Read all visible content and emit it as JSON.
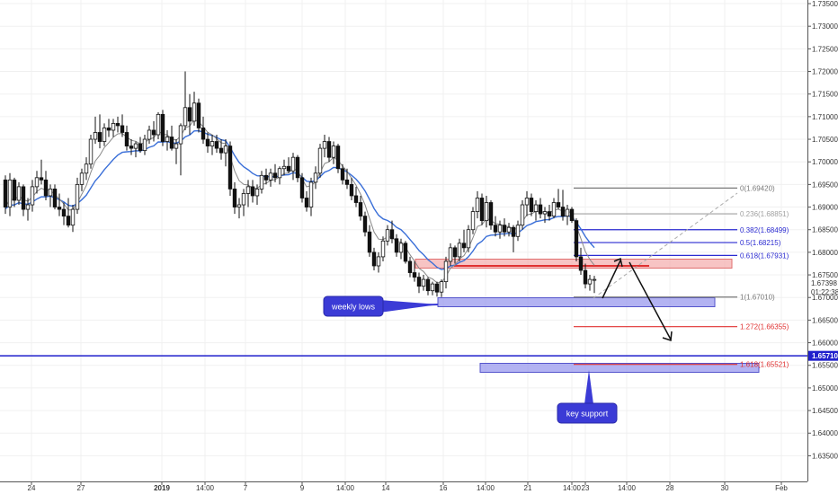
{
  "chart_data": {
    "type": "candlestick",
    "y_range": [
      1.6325,
      1.7356
    ],
    "x_ticks": [
      "24",
      "27",
      "2019",
      "14:00",
      "7",
      "9",
      "14:00",
      "14",
      "16",
      "14:00",
      "21",
      "14:00",
      "23",
      "14:00",
      "28",
      "30",
      "Feb"
    ],
    "y_ticks": [
      "1.73500",
      "1.73000",
      "1.72500",
      "1.72000",
      "1.71500",
      "1.71000",
      "1.70500",
      "1.70000",
      "1.69500",
      "1.69000",
      "1.68500",
      "1.68000",
      "1.67500",
      "1.67000",
      "1.66500",
      "1.66000",
      "1.65500",
      "1.65000",
      "1.64500",
      "1.64000",
      "1.63500"
    ],
    "price_labels": {
      "current": "1.67398",
      "countdown": "01:22:38",
      "level": "1.65710",
      "level_value": 1.6571
    },
    "fib_levels": [
      {
        "label": "0(1.69420)",
        "value": 1.6942,
        "color": "#787878"
      },
      {
        "label": "0.236(1.68851)",
        "value": 1.68851,
        "color": "#a0a0a0"
      },
      {
        "label": "0.382(1.68499)",
        "value": 1.68499,
        "color": "#2b2bd1"
      },
      {
        "label": "0.5(1.68215)",
        "value": 1.68215,
        "color": "#2b2bd1"
      },
      {
        "label": "0.618(1.67931)",
        "value": 1.67931,
        "color": "#2b2bd1"
      },
      {
        "label": "1(1.67010)",
        "value": 1.6701,
        "color": "#787878"
      },
      {
        "label": "1.272(1.66355)",
        "value": 1.66355,
        "color": "#e03030"
      },
      {
        "label": "1.618(1.65521)",
        "value": 1.65521,
        "color": "#e03030"
      }
    ],
    "annotations": [
      {
        "name": "weekly-lows",
        "text": "weekly lows"
      },
      {
        "name": "key-support",
        "text": "key support"
      }
    ],
    "colors": {
      "candle": "#111111",
      "ma_fast": "#888888",
      "ma_slow": "#3a6fd8",
      "support_zone": "#9999ee",
      "resistance_zone": "#f4b0b0",
      "level_line": "#2020cc",
      "callout": "#3b3bd6"
    },
    "candles": [
      {
        "x": 6,
        "o": 1.696,
        "h": 1.697,
        "l": 1.6885,
        "c": 1.69
      },
      {
        "x": 11,
        "o": 1.69,
        "h": 1.6975,
        "l": 1.688,
        "c": 1.696
      },
      {
        "x": 16,
        "o": 1.696,
        "h": 1.6965,
        "l": 1.69,
        "c": 1.6915
      },
      {
        "x": 21,
        "o": 1.6915,
        "h": 1.6955,
        "l": 1.6905,
        "c": 1.6945
      },
      {
        "x": 26,
        "o": 1.6945,
        "h": 1.695,
        "l": 1.688,
        "c": 1.6895
      },
      {
        "x": 31,
        "o": 1.6895,
        "h": 1.692,
        "l": 1.687,
        "c": 1.6905
      },
      {
        "x": 36,
        "o": 1.6905,
        "h": 1.696,
        "l": 1.689,
        "c": 1.6945
      },
      {
        "x": 41,
        "o": 1.6945,
        "h": 1.698,
        "l": 1.693,
        "c": 1.6965
      },
      {
        "x": 46,
        "o": 1.6965,
        "h": 1.7005,
        "l": 1.695,
        "c": 1.696
      },
      {
        "x": 51,
        "o": 1.696,
        "h": 1.698,
        "l": 1.6915,
        "c": 1.6925
      },
      {
        "x": 56,
        "o": 1.6925,
        "h": 1.695,
        "l": 1.69,
        "c": 1.694
      },
      {
        "x": 61,
        "o": 1.694,
        "h": 1.695,
        "l": 1.6895,
        "c": 1.69
      },
      {
        "x": 66,
        "o": 1.69,
        "h": 1.693,
        "l": 1.688,
        "c": 1.6895
      },
      {
        "x": 71,
        "o": 1.6895,
        "h": 1.691,
        "l": 1.686,
        "c": 1.688
      },
      {
        "x": 76,
        "o": 1.688,
        "h": 1.692,
        "l": 1.6855,
        "c": 1.686
      },
      {
        "x": 81,
        "o": 1.686,
        "h": 1.6905,
        "l": 1.6845,
        "c": 1.6895
      },
      {
        "x": 86,
        "o": 1.6895,
        "h": 1.6965,
        "l": 1.6885,
        "c": 1.695
      },
      {
        "x": 91,
        "o": 1.695,
        "h": 1.6985,
        "l": 1.6935,
        "c": 1.6975
      },
      {
        "x": 96,
        "o": 1.6975,
        "h": 1.701,
        "l": 1.696,
        "c": 1.6995
      },
      {
        "x": 101,
        "o": 1.6995,
        "h": 1.706,
        "l": 1.6985,
        "c": 1.705
      },
      {
        "x": 106,
        "o": 1.705,
        "h": 1.71,
        "l": 1.704,
        "c": 1.7065
      },
      {
        "x": 111,
        "o": 1.7065,
        "h": 1.7105,
        "l": 1.703,
        "c": 1.7045
      },
      {
        "x": 116,
        "o": 1.7045,
        "h": 1.7085,
        "l": 1.7035,
        "c": 1.7075
      },
      {
        "x": 121,
        "o": 1.7075,
        "h": 1.7095,
        "l": 1.7055,
        "c": 1.707
      },
      {
        "x": 126,
        "o": 1.707,
        "h": 1.7095,
        "l": 1.7055,
        "c": 1.7085
      },
      {
        "x": 131,
        "o": 1.7085,
        "h": 1.71,
        "l": 1.7065,
        "c": 1.708
      },
      {
        "x": 136,
        "o": 1.708,
        "h": 1.7105,
        "l": 1.7055,
        "c": 1.7065
      },
      {
        "x": 141,
        "o": 1.7065,
        "h": 1.708,
        "l": 1.7025,
        "c": 1.7035
      },
      {
        "x": 146,
        "o": 1.7035,
        "h": 1.705,
        "l": 1.7015,
        "c": 1.703
      },
      {
        "x": 151,
        "o": 1.703,
        "h": 1.7045,
        "l": 1.701,
        "c": 1.704
      },
      {
        "x": 156,
        "o": 1.704,
        "h": 1.7055,
        "l": 1.702,
        "c": 1.7025
      },
      {
        "x": 161,
        "o": 1.7025,
        "h": 1.706,
        "l": 1.7015,
        "c": 1.705
      },
      {
        "x": 166,
        "o": 1.705,
        "h": 1.708,
        "l": 1.704,
        "c": 1.707
      },
      {
        "x": 171,
        "o": 1.707,
        "h": 1.709,
        "l": 1.7045,
        "c": 1.706
      },
      {
        "x": 176,
        "o": 1.706,
        "h": 1.711,
        "l": 1.705,
        "c": 1.7105
      },
      {
        "x": 181,
        "o": 1.7105,
        "h": 1.7115,
        "l": 1.7035,
        "c": 1.7045
      },
      {
        "x": 186,
        "o": 1.7045,
        "h": 1.707,
        "l": 1.7025,
        "c": 1.7055
      },
      {
        "x": 191,
        "o": 1.7055,
        "h": 1.708,
        "l": 1.7025,
        "c": 1.703
      },
      {
        "x": 196,
        "o": 1.703,
        "h": 1.705,
        "l": 1.6995,
        "c": 1.704
      },
      {
        "x": 201,
        "o": 1.704,
        "h": 1.7085,
        "l": 1.697,
        "c": 1.708
      },
      {
        "x": 206,
        "o": 1.708,
        "h": 1.72,
        "l": 1.707,
        "c": 1.712
      },
      {
        "x": 211,
        "o": 1.712,
        "h": 1.715,
        "l": 1.706,
        "c": 1.709
      },
      {
        "x": 216,
        "o": 1.709,
        "h": 1.7155,
        "l": 1.708,
        "c": 1.713
      },
      {
        "x": 221,
        "o": 1.713,
        "h": 1.714,
        "l": 1.7065,
        "c": 1.7075
      },
      {
        "x": 226,
        "o": 1.7075,
        "h": 1.71,
        "l": 1.704,
        "c": 1.705
      },
      {
        "x": 231,
        "o": 1.705,
        "h": 1.7065,
        "l": 1.702,
        "c": 1.7035
      },
      {
        "x": 236,
        "o": 1.7035,
        "h": 1.706,
        "l": 1.7015,
        "c": 1.7045
      },
      {
        "x": 241,
        "o": 1.7045,
        "h": 1.706,
        "l": 1.702,
        "c": 1.703
      },
      {
        "x": 246,
        "o": 1.703,
        "h": 1.705,
        "l": 1.7005,
        "c": 1.702
      },
      {
        "x": 251,
        "o": 1.702,
        "h": 1.705,
        "l": 1.699,
        "c": 1.7035
      },
      {
        "x": 256,
        "o": 1.7035,
        "h": 1.7045,
        "l": 1.6925,
        "c": 1.694
      },
      {
        "x": 261,
        "o": 1.694,
        "h": 1.6955,
        "l": 1.6885,
        "c": 1.69
      },
      {
        "x": 266,
        "o": 1.69,
        "h": 1.692,
        "l": 1.6875,
        "c": 1.6905
      },
      {
        "x": 271,
        "o": 1.6905,
        "h": 1.694,
        "l": 1.688,
        "c": 1.693
      },
      {
        "x": 276,
        "o": 1.693,
        "h": 1.696,
        "l": 1.69,
        "c": 1.6945
      },
      {
        "x": 281,
        "o": 1.6945,
        "h": 1.696,
        "l": 1.691,
        "c": 1.6925
      },
      {
        "x": 286,
        "o": 1.6925,
        "h": 1.695,
        "l": 1.6905,
        "c": 1.694
      },
      {
        "x": 291,
        "o": 1.694,
        "h": 1.698,
        "l": 1.693,
        "c": 1.697
      },
      {
        "x": 296,
        "o": 1.697,
        "h": 1.6985,
        "l": 1.695,
        "c": 1.696
      },
      {
        "x": 301,
        "o": 1.696,
        "h": 1.6985,
        "l": 1.6945,
        "c": 1.6975
      },
      {
        "x": 306,
        "o": 1.6975,
        "h": 1.6995,
        "l": 1.6955,
        "c": 1.6965
      },
      {
        "x": 311,
        "o": 1.6965,
        "h": 1.699,
        "l": 1.695,
        "c": 1.6985
      },
      {
        "x": 316,
        "o": 1.6985,
        "h": 1.7005,
        "l": 1.697,
        "c": 1.699
      },
      {
        "x": 321,
        "o": 1.699,
        "h": 1.701,
        "l": 1.6975,
        "c": 1.698
      },
      {
        "x": 326,
        "o": 1.698,
        "h": 1.702,
        "l": 1.696,
        "c": 1.701
      },
      {
        "x": 331,
        "o": 1.701,
        "h": 1.7015,
        "l": 1.6955,
        "c": 1.6965
      },
      {
        "x": 336,
        "o": 1.6965,
        "h": 1.6975,
        "l": 1.691,
        "c": 1.692
      },
      {
        "x": 341,
        "o": 1.692,
        "h": 1.6935,
        "l": 1.689,
        "c": 1.69
      },
      {
        "x": 346,
        "o": 1.69,
        "h": 1.6965,
        "l": 1.688,
        "c": 1.6955
      },
      {
        "x": 351,
        "o": 1.6955,
        "h": 1.699,
        "l": 1.694,
        "c": 1.6975
      },
      {
        "x": 356,
        "o": 1.6975,
        "h": 1.704,
        "l": 1.6965,
        "c": 1.703
      },
      {
        "x": 361,
        "o": 1.703,
        "h": 1.706,
        "l": 1.701,
        "c": 1.7045
      },
      {
        "x": 366,
        "o": 1.7045,
        "h": 1.7055,
        "l": 1.7,
        "c": 1.701
      },
      {
        "x": 371,
        "o": 1.701,
        "h": 1.7045,
        "l": 1.6995,
        "c": 1.7035
      },
      {
        "x": 376,
        "o": 1.7035,
        "h": 1.704,
        "l": 1.6975,
        "c": 1.6985
      },
      {
        "x": 381,
        "o": 1.6985,
        "h": 1.6995,
        "l": 1.695,
        "c": 1.696
      },
      {
        "x": 386,
        "o": 1.696,
        "h": 1.6985,
        "l": 1.694,
        "c": 1.695
      },
      {
        "x": 391,
        "o": 1.695,
        "h": 1.6965,
        "l": 1.6915,
        "c": 1.6925
      },
      {
        "x": 396,
        "o": 1.6925,
        "h": 1.6945,
        "l": 1.69,
        "c": 1.691
      },
      {
        "x": 401,
        "o": 1.691,
        "h": 1.6925,
        "l": 1.687,
        "c": 1.688
      },
      {
        "x": 406,
        "o": 1.688,
        "h": 1.689,
        "l": 1.6835,
        "c": 1.6845
      },
      {
        "x": 411,
        "o": 1.6845,
        "h": 1.686,
        "l": 1.679,
        "c": 1.68
      },
      {
        "x": 416,
        "o": 1.68,
        "h": 1.681,
        "l": 1.676,
        "c": 1.677
      },
      {
        "x": 421,
        "o": 1.677,
        "h": 1.68,
        "l": 1.6755,
        "c": 1.679
      },
      {
        "x": 426,
        "o": 1.679,
        "h": 1.6835,
        "l": 1.678,
        "c": 1.6825
      },
      {
        "x": 431,
        "o": 1.6825,
        "h": 1.686,
        "l": 1.6815,
        "c": 1.685
      },
      {
        "x": 436,
        "o": 1.685,
        "h": 1.687,
        "l": 1.682,
        "c": 1.683
      },
      {
        "x": 441,
        "o": 1.683,
        "h": 1.684,
        "l": 1.679,
        "c": 1.68
      },
      {
        "x": 446,
        "o": 1.68,
        "h": 1.683,
        "l": 1.6785,
        "c": 1.682
      },
      {
        "x": 451,
        "o": 1.682,
        "h": 1.6825,
        "l": 1.6775,
        "c": 1.678
      },
      {
        "x": 456,
        "o": 1.678,
        "h": 1.679,
        "l": 1.6745,
        "c": 1.6755
      },
      {
        "x": 461,
        "o": 1.6755,
        "h": 1.678,
        "l": 1.6735,
        "c": 1.6745
      },
      {
        "x": 466,
        "o": 1.6745,
        "h": 1.6755,
        "l": 1.671,
        "c": 1.6725
      },
      {
        "x": 471,
        "o": 1.6725,
        "h": 1.675,
        "l": 1.6715,
        "c": 1.674
      },
      {
        "x": 476,
        "o": 1.674,
        "h": 1.6745,
        "l": 1.6705,
        "c": 1.6715
      },
      {
        "x": 481,
        "o": 1.6715,
        "h": 1.6735,
        "l": 1.6705,
        "c": 1.673
      },
      {
        "x": 486,
        "o": 1.673,
        "h": 1.6735,
        "l": 1.6702,
        "c": 1.6712
      },
      {
        "x": 491,
        "o": 1.6712,
        "h": 1.674,
        "l": 1.6701,
        "c": 1.6735
      },
      {
        "x": 496,
        "o": 1.6735,
        "h": 1.679,
        "l": 1.672,
        "c": 1.678
      },
      {
        "x": 501,
        "o": 1.678,
        "h": 1.682,
        "l": 1.677,
        "c": 1.681
      },
      {
        "x": 506,
        "o": 1.681,
        "h": 1.6815,
        "l": 1.6775,
        "c": 1.679
      },
      {
        "x": 511,
        "o": 1.679,
        "h": 1.683,
        "l": 1.678,
        "c": 1.682
      },
      {
        "x": 516,
        "o": 1.682,
        "h": 1.685,
        "l": 1.68,
        "c": 1.681
      },
      {
        "x": 521,
        "o": 1.681,
        "h": 1.686,
        "l": 1.68,
        "c": 1.685
      },
      {
        "x": 526,
        "o": 1.685,
        "h": 1.69,
        "l": 1.684,
        "c": 1.689
      },
      {
        "x": 531,
        "o": 1.689,
        "h": 1.6935,
        "l": 1.6875,
        "c": 1.692
      },
      {
        "x": 536,
        "o": 1.692,
        "h": 1.693,
        "l": 1.686,
        "c": 1.687
      },
      {
        "x": 541,
        "o": 1.687,
        "h": 1.6925,
        "l": 1.6855,
        "c": 1.691
      },
      {
        "x": 546,
        "o": 1.691,
        "h": 1.6915,
        "l": 1.685,
        "c": 1.686
      },
      {
        "x": 551,
        "o": 1.686,
        "h": 1.688,
        "l": 1.6835,
        "c": 1.6845
      },
      {
        "x": 556,
        "o": 1.6845,
        "h": 1.687,
        "l": 1.683,
        "c": 1.686
      },
      {
        "x": 561,
        "o": 1.686,
        "h": 1.6875,
        "l": 1.6835,
        "c": 1.6845
      },
      {
        "x": 566,
        "o": 1.6845,
        "h": 1.6865,
        "l": 1.6835,
        "c": 1.6855
      },
      {
        "x": 571,
        "o": 1.6855,
        "h": 1.686,
        "l": 1.68,
        "c": 1.6835
      },
      {
        "x": 576,
        "o": 1.6835,
        "h": 1.687,
        "l": 1.6825,
        "c": 1.686
      },
      {
        "x": 581,
        "o": 1.686,
        "h": 1.6915,
        "l": 1.685,
        "c": 1.6905
      },
      {
        "x": 586,
        "o": 1.6905,
        "h": 1.6935,
        "l": 1.688,
        "c": 1.692
      },
      {
        "x": 591,
        "o": 1.692,
        "h": 1.693,
        "l": 1.688,
        "c": 1.689
      },
      {
        "x": 596,
        "o": 1.689,
        "h": 1.6915,
        "l": 1.687,
        "c": 1.6905
      },
      {
        "x": 601,
        "o": 1.6905,
        "h": 1.692,
        "l": 1.6875,
        "c": 1.6885
      },
      {
        "x": 606,
        "o": 1.6885,
        "h": 1.69,
        "l": 1.6865,
        "c": 1.689
      },
      {
        "x": 611,
        "o": 1.689,
        "h": 1.6905,
        "l": 1.687,
        "c": 1.688
      },
      {
        "x": 616,
        "o": 1.688,
        "h": 1.692,
        "l": 1.6875,
        "c": 1.691
      },
      {
        "x": 621,
        "o": 1.691,
        "h": 1.694,
        "l": 1.6895,
        "c": 1.69
      },
      {
        "x": 626,
        "o": 1.69,
        "h": 1.6938,
        "l": 1.687,
        "c": 1.688
      },
      {
        "x": 631,
        "o": 1.688,
        "h": 1.6905,
        "l": 1.686,
        "c": 1.6895
      },
      {
        "x": 636,
        "o": 1.6895,
        "h": 1.69,
        "l": 1.6865,
        "c": 1.687
      },
      {
        "x": 641,
        "o": 1.687,
        "h": 1.6875,
        "l": 1.678,
        "c": 1.679
      },
      {
        "x": 646,
        "o": 1.679,
        "h": 1.681,
        "l": 1.675,
        "c": 1.676
      },
      {
        "x": 651,
        "o": 1.676,
        "h": 1.6775,
        "l": 1.672,
        "c": 1.673
      },
      {
        "x": 656,
        "o": 1.673,
        "h": 1.675,
        "l": 1.6715,
        "c": 1.674
      },
      {
        "x": 661,
        "o": 1.674,
        "h": 1.6748,
        "l": 1.671,
        "c": 1.674
      }
    ]
  }
}
